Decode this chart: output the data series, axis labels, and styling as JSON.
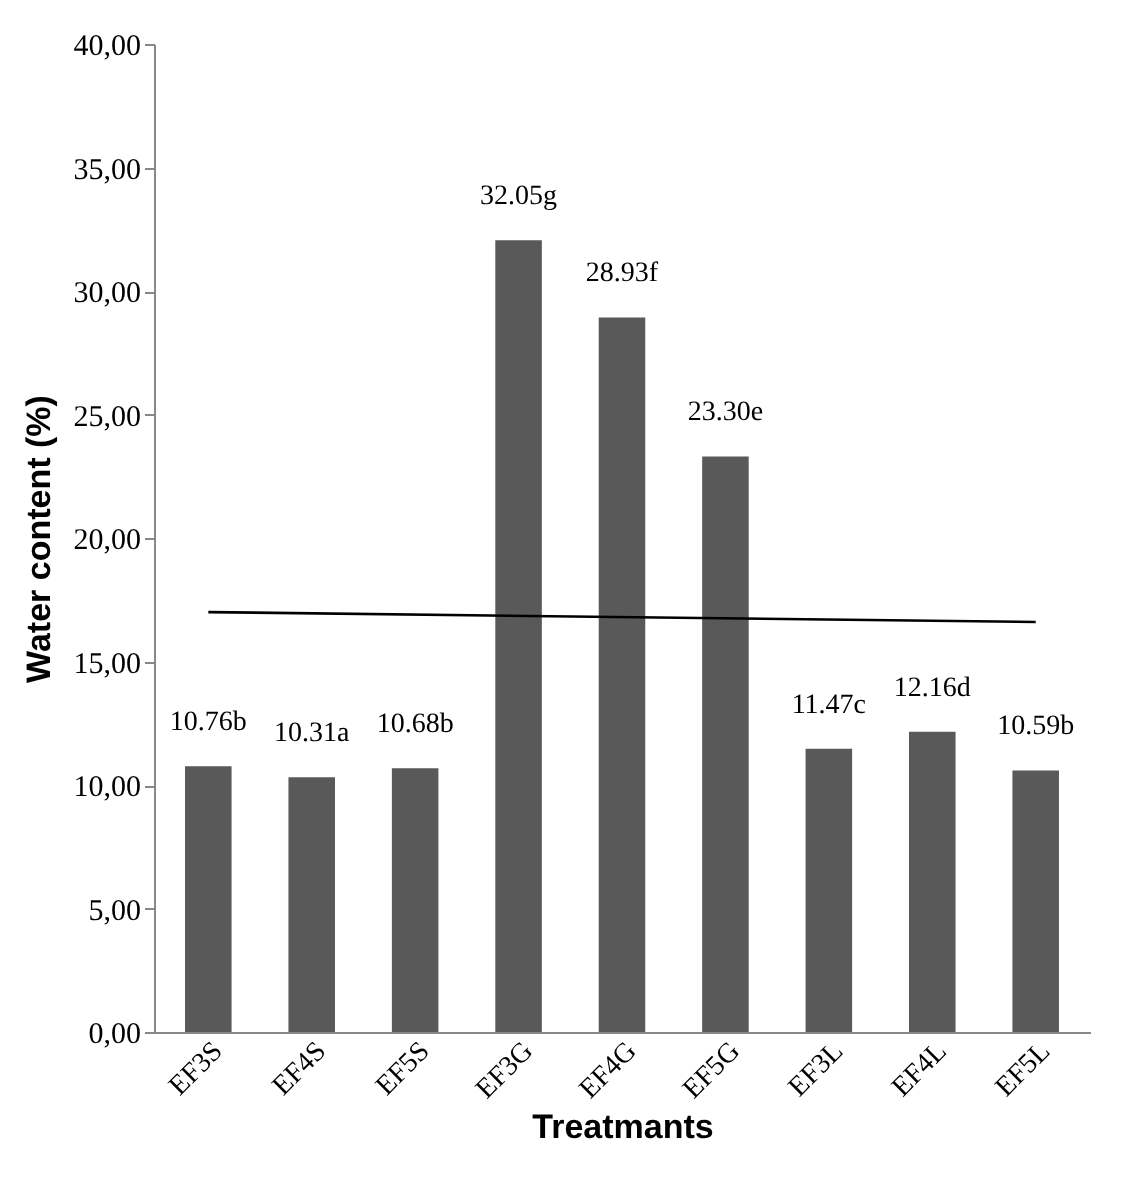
{
  "chart_data": {
    "type": "bar",
    "xlabel": "Treatmants",
    "ylabel": "Water content (%)",
    "categories": [
      "EF3S",
      "EF4S",
      "EF5S",
      "EF3G",
      "EF4G",
      "EF5G",
      "EF3L",
      "EF4L",
      "EF5L"
    ],
    "series": [
      {
        "color": "#595959",
        "values": [
          10.76,
          10.31,
          10.68,
          32.05,
          28.93,
          23.3,
          11.47,
          12.16,
          10.59
        ],
        "value_labels": [
          "10.76b",
          "10.31a",
          "10.68b",
          "32.05g",
          "28.93f",
          "23.30e",
          "11.47c",
          "12.16d",
          "10.59b"
        ]
      },
      {
        "type": "line",
        "x": [
          "EF3S",
          "EF5L"
        ],
        "values": [
          17.0,
          16.6
        ],
        "color": "#000000"
      }
    ],
    "ylim": [
      0,
      40
    ],
    "yticks": [
      {
        "value": 0,
        "label": "0,00"
      },
      {
        "value": 5,
        "label": "5,00"
      },
      {
        "value": 10,
        "label": "10,00"
      },
      {
        "value": 15,
        "label": "15,00"
      },
      {
        "value": 20,
        "label": "20,00"
      },
      {
        "value": 25,
        "label": "25,00"
      },
      {
        "value": 30,
        "label": "30,00"
      },
      {
        "value": 35,
        "label": "35,00"
      },
      {
        "value": 40,
        "label": "40,00"
      }
    ],
    "grid": false
  }
}
